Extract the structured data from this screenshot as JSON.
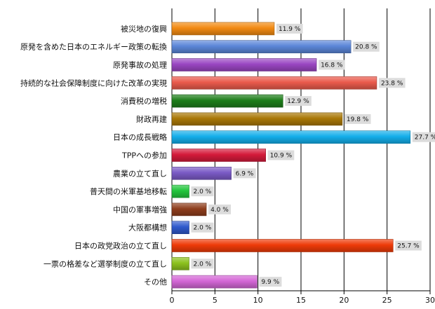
{
  "chart_data": {
    "type": "bar",
    "orientation": "horizontal",
    "categories": [
      "被災地の復興",
      "原発を含めた日本のエネルギー政策の転換",
      "原発事故の処理",
      "持続的な社会保障制度に向けた改革の実現",
      "消費税の増税",
      "財政再建",
      "日本の成長戦略",
      "TPPへの参加",
      "農業の立て直し",
      "普天間の米軍基地移転",
      "中国の軍事増強",
      "大阪都構想",
      "日本の政党政治の立て直し",
      "一票の格差など選挙制度の立て直し",
      "その他"
    ],
    "values": [
      11.9,
      20.8,
      16.8,
      23.8,
      12.9,
      19.8,
      27.7,
      10.9,
      6.9,
      2.0,
      4.0,
      2.0,
      25.7,
      2.0,
      9.9
    ],
    "value_labels": [
      "11.9 %",
      "20.8 %",
      "16.8 %",
      "23.8 %",
      "12.9 %",
      "19.8 %",
      "27.7 %",
      "10.9 %",
      "6.9 %",
      "2.0 %",
      "4.0 %",
      "2.0 %",
      "25.7 %",
      "2.0 %",
      "9.9 %"
    ],
    "colors": [
      "#f28a12",
      "#5b86d8",
      "#9a46c2",
      "#ea5a4c",
      "#1d7e1a",
      "#a97706",
      "#14aeea",
      "#d41a3a",
      "#7a5ac6",
      "#22c63c",
      "#8e3d1c",
      "#2f59cc",
      "#ee3a08",
      "#8cc21e",
      "#d466d6"
    ],
    "xlim": [
      0,
      30
    ],
    "xticks": [
      "0",
      "5",
      "10",
      "15",
      "20",
      "25",
      "30"
    ],
    "grid": true,
    "title": "",
    "xlabel": "",
    "ylabel": ""
  }
}
